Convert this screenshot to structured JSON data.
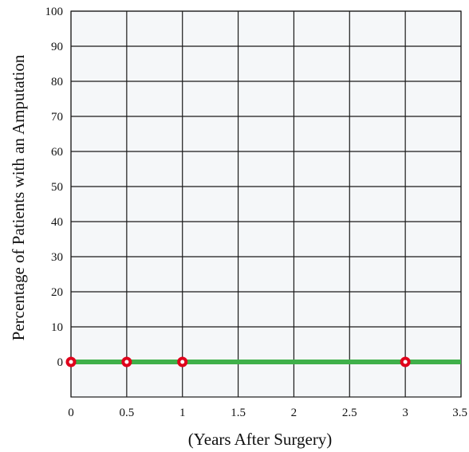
{
  "chart_data": {
    "type": "line",
    "title": "",
    "xlabel": "(Years After Surgery)",
    "ylabel": "Percentage of Patients with an Amputation",
    "xlim": [
      0,
      3.5
    ],
    "ylim": [
      -10,
      100
    ],
    "x_ticks": [
      "0",
      "0.5",
      "1",
      "1.5",
      "2",
      "2.5",
      "3",
      "3.5"
    ],
    "y_ticks": [
      "0",
      "10",
      "20",
      "30",
      "40",
      "50",
      "60",
      "70",
      "80",
      "90",
      "100"
    ],
    "grid": true,
    "legend": "none",
    "series": [
      {
        "line_x": [
          0,
          3.5
        ],
        "line_y": [
          0,
          0
        ],
        "markers_x": [
          0,
          0.5,
          1,
          3
        ],
        "markers_y": [
          0,
          0,
          0,
          0
        ]
      }
    ],
    "colors": {
      "line": "#3fb04a",
      "marker_fill": "#e0001b",
      "marker_center": "#ffffff",
      "plot_background": "#f5f7f9",
      "grid": "#1a1a1a"
    }
  }
}
